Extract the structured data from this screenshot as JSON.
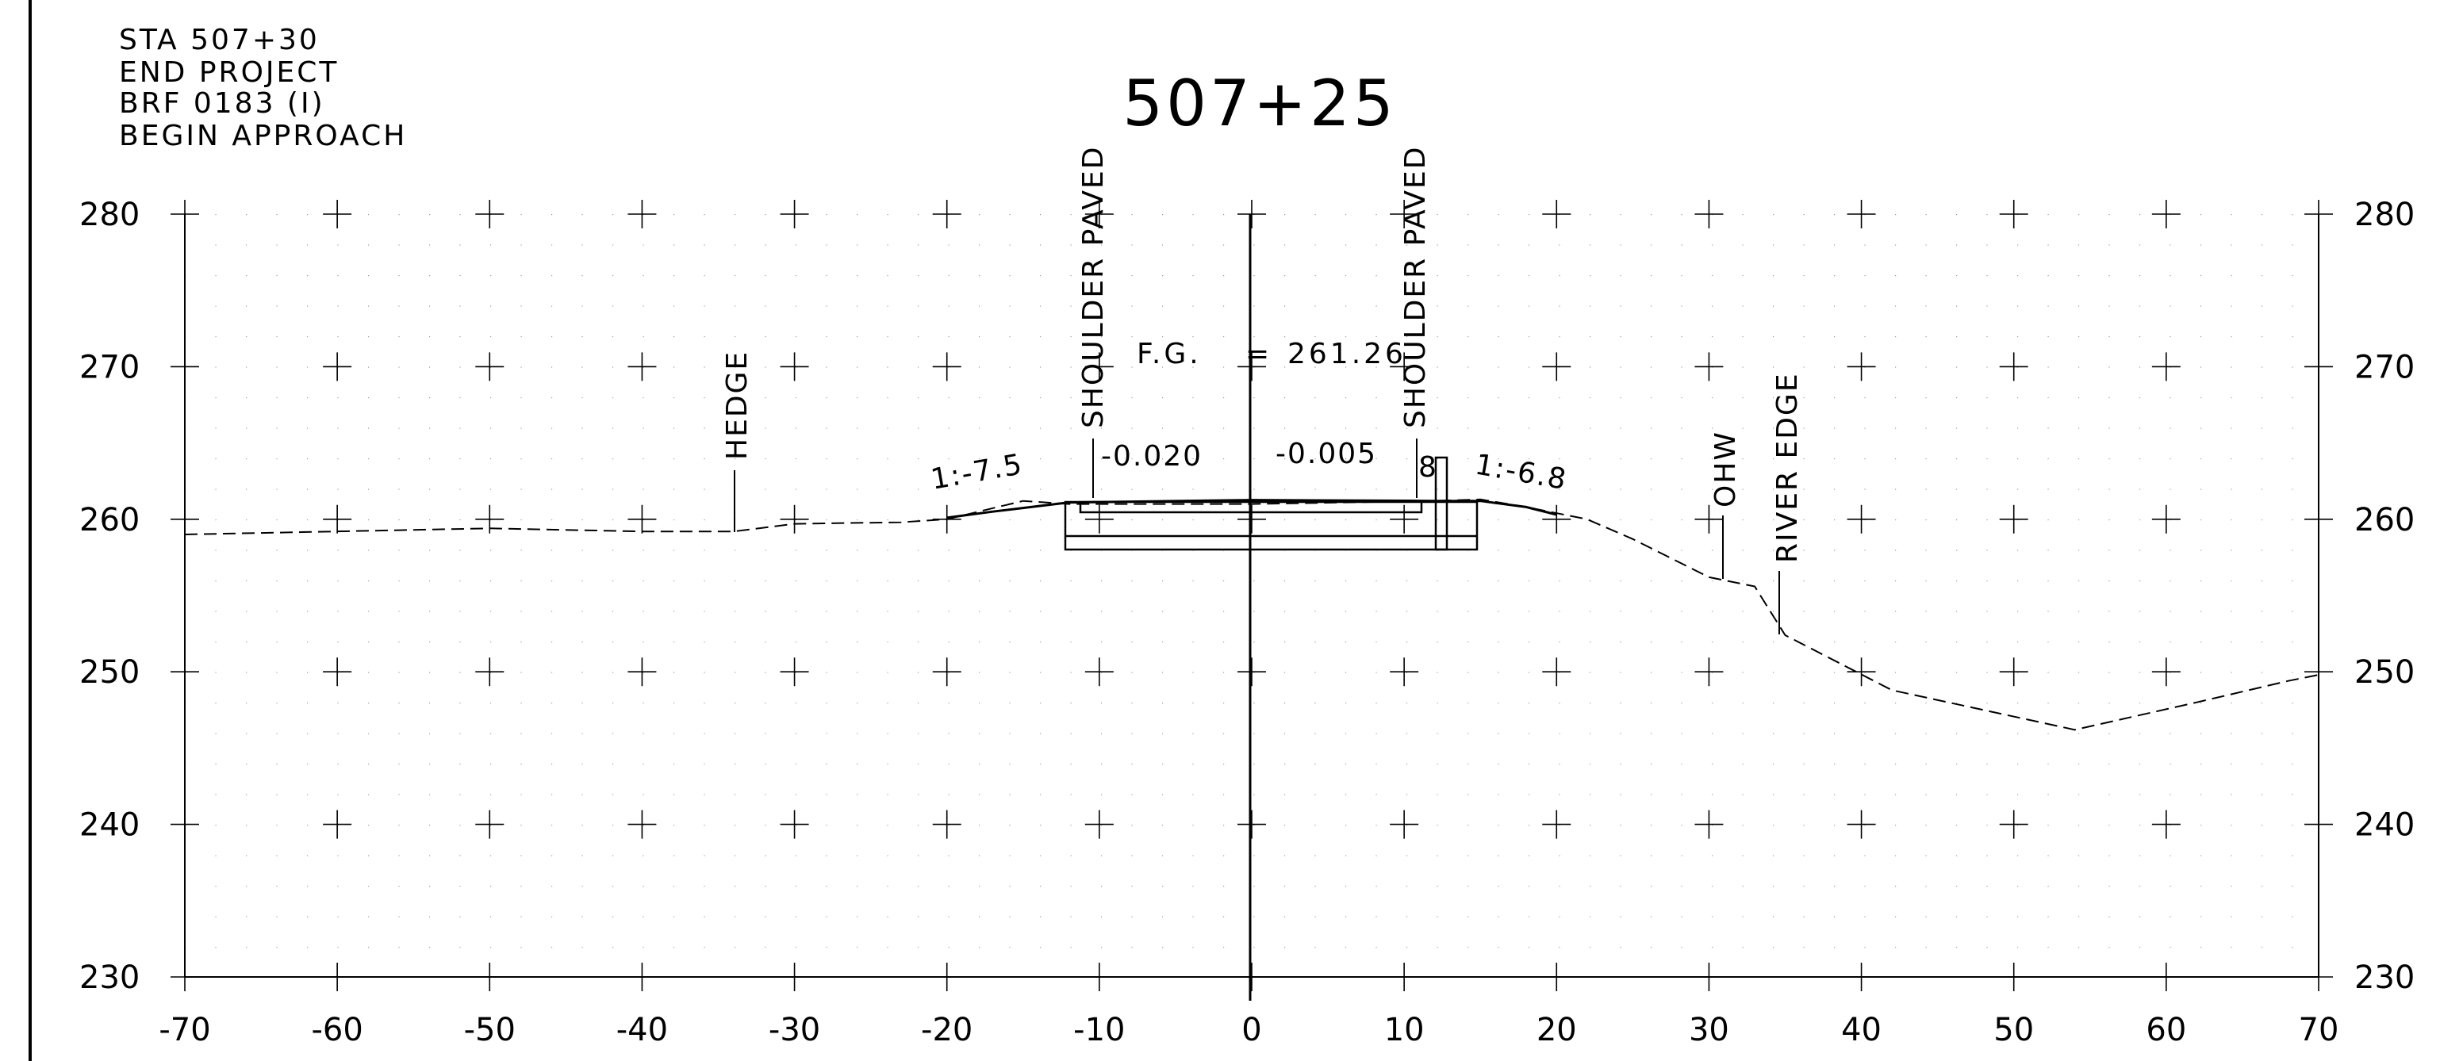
{
  "notes": [
    "STA 507+30",
    "END PROJECT",
    "BRF 0183 (I)",
    "BEGIN APPROACH"
  ],
  "station": "507+25",
  "axes": {
    "x_ticks": [
      "-70",
      "-60",
      "-50",
      "-40",
      "-30",
      "-20",
      "-10",
      "0",
      "10",
      "20",
      "30",
      "40",
      "50",
      "60",
      "70"
    ],
    "y_ticks": [
      "280",
      "270",
      "260",
      "250",
      "240",
      "230"
    ],
    "xlim": [
      -70,
      70
    ],
    "ylim": [
      230,
      280
    ],
    "grid": "plus-markers at 10 x 10, dotted minor grid"
  },
  "annotations": {
    "hedge": "HEDGE",
    "shoulder_left": "SHOULDER PAVED",
    "shoulder_right": "SHOULDER PAVED",
    "ohw": "OHW",
    "river_edge": "RIVER EDGE",
    "fg_label": "F.G.",
    "fg_eq": "=",
    "fg_value": "261.26",
    "slope_left": "1:-7.5",
    "slope_right": "1:-6.8",
    "cross_left": "-0.020",
    "cross_right": "-0.005",
    "curb": "8"
  },
  "chart_data": {
    "type": "line",
    "xlabel": "",
    "ylabel": "",
    "xlim": [
      -70,
      70
    ],
    "ylim": [
      230,
      280
    ],
    "series": [
      {
        "style": "dashed",
        "x": [
          -70,
          -50,
          -40,
          -34,
          -30,
          -23,
          -20,
          -15,
          -12,
          0,
          12,
          15,
          18,
          22,
          25,
          30,
          33,
          35,
          42,
          54,
          62,
          68,
          70
        ],
        "y": [
          259.0,
          259.4,
          259.2,
          259.2,
          259.7,
          259.8,
          260.0,
          261.2,
          261.0,
          261.0,
          261.2,
          261.3,
          260.8,
          260.0,
          258.7,
          256.2,
          255.6,
          252.4,
          248.8,
          246.2,
          248.0,
          249.4,
          249.8
        ]
      },
      {
        "style": "solid",
        "x": [
          -20,
          -17,
          -12,
          0,
          12,
          15,
          18,
          20
        ],
        "y": [
          260.1,
          260.5,
          261.1,
          261.26,
          261.2,
          261.2,
          260.8,
          260.3
        ]
      }
    ],
    "pavement": {
      "top_left": [
        -12,
        261.1
      ],
      "top_right": [
        15,
        261.0
      ],
      "bottom_y": 258.0
    }
  }
}
